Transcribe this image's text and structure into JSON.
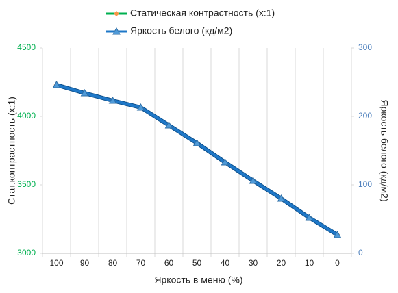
{
  "chart_data": {
    "type": "line",
    "x_label": "Яркость в меню (%)",
    "y_label": "Стат.контрастность  (x:1)",
    "y2_label": "Яркость белого (кд/м2)",
    "categories": [
      "100",
      "90",
      "80",
      "70",
      "60",
      "50",
      "40",
      "30",
      "20",
      "10",
      "0"
    ],
    "series": [
      {
        "name": "Статическая контрастность (x:1)",
        "color": "#00b050",
        "marker_color": "#f79646",
        "values": [
          4230,
          4170,
          4115,
          4065,
          3935,
          3805,
          3665,
          3530,
          3400,
          3260,
          3135
        ]
      },
      {
        "name": "Яркость белого (кд/м2)",
        "color": "#1f78c8",
        "axis": "y2",
        "values": [
          246,
          234,
          223,
          213,
          187,
          161,
          133,
          106,
          80,
          52,
          27
        ]
      }
    ],
    "ylim": [
      3000,
      4500
    ],
    "yticks": [
      3000,
      3500,
      4000,
      4500
    ],
    "ytick_color": "#00b050",
    "y2lim": [
      0,
      300
    ],
    "y2ticks": [
      0,
      100,
      200,
      300
    ],
    "y2tick_color": "#4f81bd"
  }
}
